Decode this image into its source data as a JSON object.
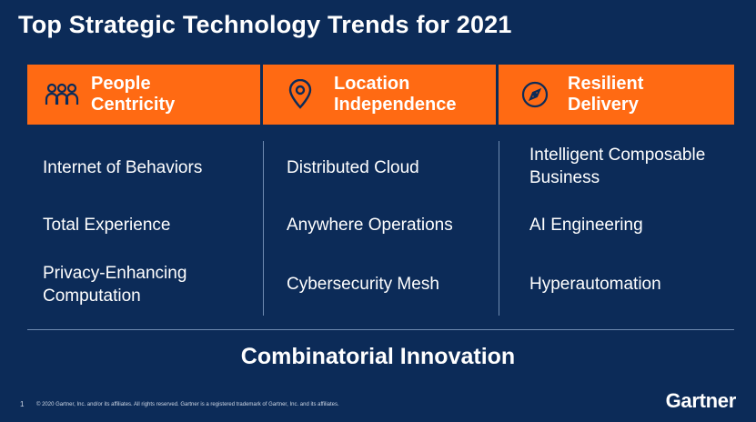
{
  "title": "Top Strategic Technology Trends for 2021",
  "colors": {
    "background": "#0c2b58",
    "accent": "#ff6a13",
    "text": "#ffffff"
  },
  "columns": [
    {
      "header_line1": "People",
      "header_line2": "Centricity",
      "icon": "people-icon",
      "items": [
        "Internet of Behaviors",
        "Total Experience",
        "Privacy-Enhancing Computation"
      ]
    },
    {
      "header_line1": "Location",
      "header_line2": "Independence",
      "icon": "location-pin-icon",
      "items": [
        "Distributed Cloud",
        "Anywhere Operations",
        "Cybersecurity Mesh"
      ]
    },
    {
      "header_line1": "Resilient",
      "header_line2": "Delivery",
      "icon": "compass-icon",
      "items": [
        "Intelligent Composable Business",
        "AI Engineering",
        "Hyperautomation"
      ]
    }
  ],
  "footer_title": "Combinatorial Innovation",
  "page_number": "1",
  "copyright": "© 2020 Gartner, Inc. and/or its affiliates. All rights reserved. Gartner is a registered trademark of Gartner, Inc. and its affiliates.",
  "logo": "Gartner"
}
